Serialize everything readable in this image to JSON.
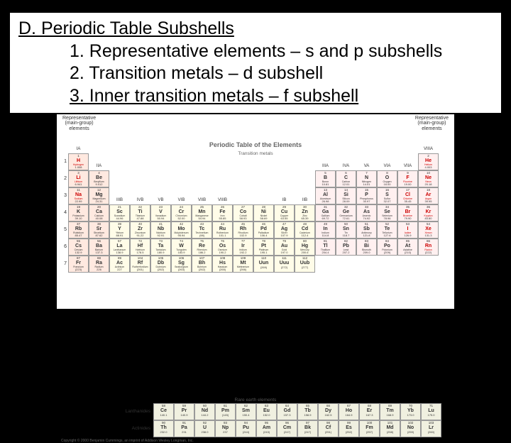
{
  "heading": "D.  Periodic Table Subshells",
  "items": [
    "1. Representative elements – s and p subshells",
    "2. Transition metals – d subshell",
    "3. Inner transition metals – f subshell"
  ],
  "ptable": {
    "title": "Periodic Table of the Elements",
    "top_left_label": "Representative\n(main-group)\nelements",
    "top_right_label": "Representative\n(main-group)\nelements",
    "transition_label": "Transition metals",
    "rare_label": "Rare earth elements",
    "lanthanides_label": "Lanthanides",
    "actinides_label": "Actinides",
    "copyright": "Copyright © 2000 Benjamin Cummings, an imprint of Addison Wesley Longman, Inc.",
    "groups_main": [
      "IA",
      "IIA"
    ],
    "groups_trans": [
      "IIIB",
      "IVB",
      "VB",
      "VIB",
      "VIIB",
      "VIIIB",
      "",
      "",
      "IB",
      "IIB"
    ],
    "groups_p": [
      "IIIA",
      "IVA",
      "VA",
      "VIA",
      "VIIA",
      "VIIIA"
    ],
    "periods": [
      1,
      2,
      3,
      4,
      5,
      6,
      7
    ],
    "elements": {
      "r1": [
        {
          "n": 1,
          "s": "H",
          "nm": "Hydrogen",
          "m": "1.008",
          "c": "sblock red-text"
        },
        null,
        null,
        null,
        null,
        null,
        null,
        null,
        null,
        null,
        null,
        null,
        null,
        null,
        null,
        null,
        null,
        {
          "n": 2,
          "s": "He",
          "nm": "Helium",
          "m": "4.003",
          "c": "pblock red-text"
        }
      ],
      "r2": [
        {
          "n": 3,
          "s": "Li",
          "nm": "Lithium",
          "m": "6.941",
          "c": "sblock red-text"
        },
        {
          "n": 4,
          "s": "Be",
          "nm": "Beryllium",
          "m": "9.012",
          "c": "sblock"
        },
        null,
        null,
        null,
        null,
        null,
        null,
        null,
        null,
        null,
        null,
        {
          "n": 5,
          "s": "B",
          "nm": "Boron",
          "m": "10.81",
          "c": "pblock"
        },
        {
          "n": 6,
          "s": "C",
          "nm": "Carbon",
          "m": "12.01",
          "c": "pblock"
        },
        {
          "n": 7,
          "s": "N",
          "nm": "Nitrogen",
          "m": "14.01",
          "c": "pblock"
        },
        {
          "n": 8,
          "s": "O",
          "nm": "Oxygen",
          "m": "16.00",
          "c": "pblock"
        },
        {
          "n": 9,
          "s": "F",
          "nm": "Fluorine",
          "m": "19.00",
          "c": "pblock red-text"
        },
        {
          "n": 10,
          "s": "Ne",
          "nm": "Neon",
          "m": "20.18",
          "c": "pblock red-text"
        }
      ],
      "r3": [
        {
          "n": 11,
          "s": "Na",
          "nm": "Sodium",
          "m": "22.99",
          "c": "sblock red-text"
        },
        {
          "n": 12,
          "s": "Mg",
          "nm": "Magnesium",
          "m": "24.31",
          "c": "sblock"
        },
        null,
        null,
        null,
        null,
        null,
        null,
        null,
        null,
        null,
        null,
        {
          "n": 13,
          "s": "Al",
          "nm": "Aluminum",
          "m": "26.98",
          "c": "pblock"
        },
        {
          "n": 14,
          "s": "Si",
          "nm": "Silicon",
          "m": "28.09",
          "c": "pblock"
        },
        {
          "n": 15,
          "s": "P",
          "nm": "Phosphorus",
          "m": "30.97",
          "c": "pblock"
        },
        {
          "n": 16,
          "s": "S",
          "nm": "Sulfur",
          "m": "32.07",
          "c": "pblock"
        },
        {
          "n": 17,
          "s": "Cl",
          "nm": "Chlorine",
          "m": "35.45",
          "c": "pblock red-text"
        },
        {
          "n": 18,
          "s": "Ar",
          "nm": "Argon",
          "m": "39.95",
          "c": "pblock red-text"
        }
      ],
      "r4": [
        {
          "n": 19,
          "s": "K",
          "nm": "Potassium",
          "m": "39.10",
          "c": "sblock"
        },
        {
          "n": 20,
          "s": "Ca",
          "nm": "Calcium",
          "m": "40.08",
          "c": "sblock"
        },
        {
          "n": 21,
          "s": "Sc",
          "nm": "Scandium",
          "m": "44.96",
          "c": "dblock"
        },
        {
          "n": 22,
          "s": "Ti",
          "nm": "Titanium",
          "m": "47.88",
          "c": "dblock"
        },
        {
          "n": 23,
          "s": "V",
          "nm": "Vanadium",
          "m": "50.94",
          "c": "dblock"
        },
        {
          "n": 24,
          "s": "Cr",
          "nm": "Chromium",
          "m": "52.00",
          "c": "dblock"
        },
        {
          "n": 25,
          "s": "Mn",
          "nm": "Manganese",
          "m": "54.94",
          "c": "dblock"
        },
        {
          "n": 26,
          "s": "Fe",
          "nm": "Iron",
          "m": "55.85",
          "c": "dblock"
        },
        {
          "n": 27,
          "s": "Co",
          "nm": "Cobalt",
          "m": "58.93",
          "c": "dblock"
        },
        {
          "n": 28,
          "s": "Ni",
          "nm": "Nickel",
          "m": "58.69",
          "c": "dblock"
        },
        {
          "n": 29,
          "s": "Cu",
          "nm": "Copper",
          "m": "63.55",
          "c": "dblock"
        },
        {
          "n": 30,
          "s": "Zn",
          "nm": "Zinc",
          "m": "65.39",
          "c": "dblock"
        },
        {
          "n": 31,
          "s": "Ga",
          "nm": "Gallium",
          "m": "69.72",
          "c": "pblock"
        },
        {
          "n": 32,
          "s": "Ge",
          "nm": "Germanium",
          "m": "72.61",
          "c": "pblock"
        },
        {
          "n": 33,
          "s": "As",
          "nm": "Arsenic",
          "m": "74.92",
          "c": "pblock"
        },
        {
          "n": 34,
          "s": "Se",
          "nm": "Selenium",
          "m": "78.96",
          "c": "pblock"
        },
        {
          "n": 35,
          "s": "Br",
          "nm": "Bromine",
          "m": "79.90",
          "c": "pblock red-text"
        },
        {
          "n": 36,
          "s": "Kr",
          "nm": "Krypton",
          "m": "83.80",
          "c": "pblock red-text"
        }
      ],
      "r5": [
        {
          "n": 37,
          "s": "Rb",
          "nm": "Rubidium",
          "m": "85.47",
          "c": "sblock"
        },
        {
          "n": 38,
          "s": "Sr",
          "nm": "Strontium",
          "m": "87.62",
          "c": "sblock"
        },
        {
          "n": 39,
          "s": "Y",
          "nm": "Yttrium",
          "m": "88.91",
          "c": "dblock"
        },
        {
          "n": 40,
          "s": "Zr",
          "nm": "Zirconium",
          "m": "91.22",
          "c": "dblock"
        },
        {
          "n": 41,
          "s": "Nb",
          "nm": "Niobium",
          "m": "92.91",
          "c": "dblock"
        },
        {
          "n": 42,
          "s": "Mo",
          "nm": "Molybdenum",
          "m": "95.94",
          "c": "dblock"
        },
        {
          "n": 43,
          "s": "Tc",
          "nm": "Technetium",
          "m": "(98)",
          "c": "dblock"
        },
        {
          "n": 44,
          "s": "Ru",
          "nm": "Ruthenium",
          "m": "101.1",
          "c": "dblock"
        },
        {
          "n": 45,
          "s": "Rh",
          "nm": "Rhodium",
          "m": "102.9",
          "c": "dblock"
        },
        {
          "n": 46,
          "s": "Pd",
          "nm": "Palladium",
          "m": "106.4",
          "c": "dblock"
        },
        {
          "n": 47,
          "s": "Ag",
          "nm": "Silver",
          "m": "107.9",
          "c": "dblock"
        },
        {
          "n": 48,
          "s": "Cd",
          "nm": "Cadmium",
          "m": "112.4",
          "c": "dblock"
        },
        {
          "n": 49,
          "s": "In",
          "nm": "Indium",
          "m": "114.8",
          "c": "pblock"
        },
        {
          "n": 50,
          "s": "Sn",
          "nm": "Tin",
          "m": "118.7",
          "c": "pblock"
        },
        {
          "n": 51,
          "s": "Sb",
          "nm": "Antimony",
          "m": "121.8",
          "c": "pblock"
        },
        {
          "n": 52,
          "s": "Te",
          "nm": "Tellurium",
          "m": "127.6",
          "c": "pblock"
        },
        {
          "n": 53,
          "s": "I",
          "nm": "Iodine",
          "m": "126.9",
          "c": "pblock red-text"
        },
        {
          "n": 54,
          "s": "Xe",
          "nm": "Xenon",
          "m": "131.3",
          "c": "pblock red-text"
        }
      ],
      "r6": [
        {
          "n": 55,
          "s": "Cs",
          "nm": "Cesium",
          "m": "132.9",
          "c": "sblock"
        },
        {
          "n": 56,
          "s": "Ba",
          "nm": "Barium",
          "m": "137.3",
          "c": "sblock"
        },
        {
          "n": 57,
          "s": "La",
          "nm": "Lanthanum",
          "m": "138.9",
          "c": "dblock"
        },
        {
          "n": 72,
          "s": "Hf",
          "nm": "Hafnium",
          "m": "178.5",
          "c": "dblock"
        },
        {
          "n": 73,
          "s": "Ta",
          "nm": "Tantalum",
          "m": "180.9",
          "c": "dblock"
        },
        {
          "n": 74,
          "s": "W",
          "nm": "Tungsten",
          "m": "183.9",
          "c": "dblock"
        },
        {
          "n": 75,
          "s": "Re",
          "nm": "Rhenium",
          "m": "186.2",
          "c": "dblock"
        },
        {
          "n": 76,
          "s": "Os",
          "nm": "Osmium",
          "m": "190.2",
          "c": "dblock"
        },
        {
          "n": 77,
          "s": "Ir",
          "nm": "Iridium",
          "m": "192.2",
          "c": "dblock"
        },
        {
          "n": 78,
          "s": "Pt",
          "nm": "Platinum",
          "m": "195.1",
          "c": "dblock"
        },
        {
          "n": 79,
          "s": "Au",
          "nm": "Gold",
          "m": "197.0",
          "c": "dblock"
        },
        {
          "n": 80,
          "s": "Hg",
          "nm": "Mercury",
          "m": "200.6",
          "c": "dblock"
        },
        {
          "n": 81,
          "s": "Tl",
          "nm": "Thallium",
          "m": "204.4",
          "c": "pblock"
        },
        {
          "n": 82,
          "s": "Pb",
          "nm": "Lead",
          "m": "207.2",
          "c": "pblock"
        },
        {
          "n": 83,
          "s": "Bi",
          "nm": "Bismuth",
          "m": "209.0",
          "c": "pblock"
        },
        {
          "n": 84,
          "s": "Po",
          "nm": "Polonium",
          "m": "(209)",
          "c": "pblock"
        },
        {
          "n": 85,
          "s": "At",
          "nm": "Astatine",
          "m": "(210)",
          "c": "pblock"
        },
        {
          "n": 86,
          "s": "Rn",
          "nm": "Radon",
          "m": "(222)",
          "c": "pblock red-text"
        }
      ],
      "r7": [
        {
          "n": 87,
          "s": "Fr",
          "nm": "Francium",
          "m": "(223)",
          "c": "sblock"
        },
        {
          "n": 88,
          "s": "Ra",
          "nm": "Radium",
          "m": "226",
          "c": "sblock"
        },
        {
          "n": 89,
          "s": "Ac",
          "nm": "Actinium",
          "m": "227",
          "c": "dblock"
        },
        {
          "n": 104,
          "s": "Rf",
          "nm": "Rutherfordium",
          "m": "(261)",
          "c": "dblock"
        },
        {
          "n": 105,
          "s": "Db",
          "nm": "Dubnium",
          "m": "(262)",
          "c": "dblock"
        },
        {
          "n": 106,
          "s": "Sg",
          "nm": "Seaborgium",
          "m": "(263)",
          "c": "dblock"
        },
        {
          "n": 107,
          "s": "Bh",
          "nm": "Bohrium",
          "m": "(262)",
          "c": "dblock"
        },
        {
          "n": 108,
          "s": "Hs",
          "nm": "Hassium",
          "m": "(265)",
          "c": "dblock"
        },
        {
          "n": 109,
          "s": "Mt",
          "nm": "Meitnerium",
          "m": "(266)",
          "c": "dblock"
        },
        {
          "n": 110,
          "s": "Uun",
          "nm": "",
          "m": "(269)",
          "c": "dblock"
        },
        {
          "n": 111,
          "s": "Uuu",
          "nm": "",
          "m": "(272)",
          "c": "dblock"
        },
        {
          "n": 112,
          "s": "Uub",
          "nm": "",
          "m": "(277)",
          "c": "dblock"
        }
      ],
      "lan": [
        {
          "n": 58,
          "s": "Ce",
          "m": "140.1"
        },
        {
          "n": 59,
          "s": "Pr",
          "m": "140.9"
        },
        {
          "n": 60,
          "s": "Nd",
          "m": "144.2"
        },
        {
          "n": 61,
          "s": "Pm",
          "m": "(145)"
        },
        {
          "n": 62,
          "s": "Sm",
          "m": "150.4"
        },
        {
          "n": 63,
          "s": "Eu",
          "m": "152.0"
        },
        {
          "n": 64,
          "s": "Gd",
          "m": "157.3"
        },
        {
          "n": 65,
          "s": "Tb",
          "m": "158.9"
        },
        {
          "n": 66,
          "s": "Dy",
          "m": "162.5"
        },
        {
          "n": 67,
          "s": "Ho",
          "m": "164.9"
        },
        {
          "n": 68,
          "s": "Er",
          "m": "167.3"
        },
        {
          "n": 69,
          "s": "Tm",
          "m": "168.9"
        },
        {
          "n": 70,
          "s": "Yb",
          "m": "173.0"
        },
        {
          "n": 71,
          "s": "Lu",
          "m": "175.0"
        }
      ],
      "act": [
        {
          "n": 90,
          "s": "Th",
          "m": "232.0"
        },
        {
          "n": 91,
          "s": "Pa",
          "m": "231"
        },
        {
          "n": 92,
          "s": "U",
          "m": "238.0"
        },
        {
          "n": 93,
          "s": "Np",
          "m": "237"
        },
        {
          "n": 94,
          "s": "Pu",
          "m": "(244)"
        },
        {
          "n": 95,
          "s": "Am",
          "m": "(243)"
        },
        {
          "n": 96,
          "s": "Cm",
          "m": "(247)"
        },
        {
          "n": 97,
          "s": "Bk",
          "m": "(247)"
        },
        {
          "n": 98,
          "s": "Cf",
          "m": "(251)"
        },
        {
          "n": 99,
          "s": "Es",
          "m": "(252)"
        },
        {
          "n": 100,
          "s": "Fm",
          "m": "(257)"
        },
        {
          "n": 101,
          "s": "Md",
          "m": "(258)"
        },
        {
          "n": 102,
          "s": "No",
          "m": "(259)"
        },
        {
          "n": 103,
          "s": "Lr",
          "m": "(260)"
        }
      ]
    }
  }
}
